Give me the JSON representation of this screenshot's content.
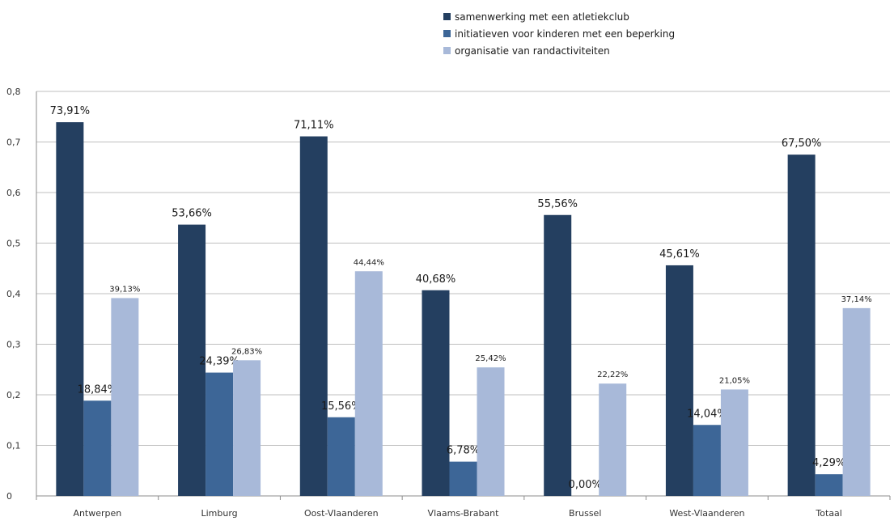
{
  "chart_data": {
    "type": "bar",
    "categories": [
      "Antwerpen",
      "Limburg",
      "Oost-Vlaanderen",
      "Vlaams-Brabant",
      "Brussel",
      "West-Vlaanderen",
      "Totaal"
    ],
    "series": [
      {
        "name": "samenwerking met een atletiekclub",
        "color": "#243f60",
        "values": [
          0.7391,
          0.5366,
          0.7111,
          0.4068,
          0.5556,
          0.4561,
          0.675
        ],
        "labels": [
          "73,91%",
          "53,66%",
          "71,11%",
          "40,68%",
          "55,56%",
          "45,61%",
          "67,50%"
        ]
      },
      {
        "name": "initiatieven voor kinderen met een beperking",
        "color": "#3d6697",
        "values": [
          0.1884,
          0.2439,
          0.1556,
          0.0678,
          0.0,
          0.1404,
          0.0429
        ],
        "labels": [
          "18,84%",
          "24,39%",
          "15,56%",
          "6,78%",
          "0,00%",
          "14,04%",
          "4,29%"
        ]
      },
      {
        "name": "organisatie van randactiviteiten",
        "color": "#a8b9d9",
        "values": [
          0.3913,
          0.2683,
          0.4444,
          0.2542,
          0.2222,
          0.2105,
          0.3714
        ],
        "labels": [
          "39,13%",
          "26,83%",
          "44,44%",
          "25,42%",
          "22,22%",
          "21,05%",
          "37,14%"
        ]
      }
    ],
    "yticks": [
      "0",
      "0,1",
      "0,2",
      "0,3",
      "0,4",
      "0,5",
      "0,6",
      "0,7",
      "0,8"
    ],
    "ylim": [
      0,
      0.8
    ],
    "grid": true,
    "legend": "top-center"
  }
}
